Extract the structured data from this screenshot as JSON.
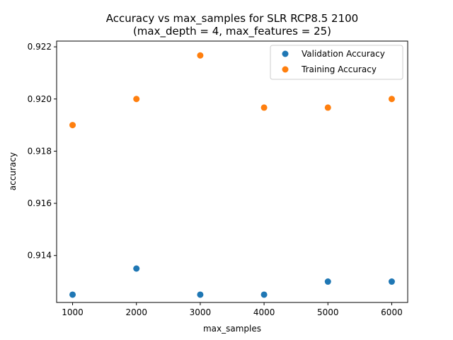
{
  "chart_data": {
    "type": "scatter",
    "title_line1": "Accuracy vs max_samples for SLR RCP8.5 2100",
    "title_line2": "(max_depth = 4, max_features = 25)",
    "xlabel": "max_samples",
    "ylabel": "accuracy",
    "xlim": [
      750,
      6250
    ],
    "ylim": [
      0.9122,
      0.92222
    ],
    "xticks": [
      1000,
      2000,
      3000,
      4000,
      5000,
      6000
    ],
    "xtick_labels": [
      "1000",
      "2000",
      "3000",
      "4000",
      "5000",
      "6000"
    ],
    "yticks": [
      0.914,
      0.916,
      0.918,
      0.92,
      0.922
    ],
    "ytick_labels": [
      "0.914",
      "0.916",
      "0.918",
      "0.920",
      "0.922"
    ],
    "grid": false,
    "legend_position": "top-right",
    "series": [
      {
        "name": "Validation Accuracy",
        "color": "#1f77b4",
        "x": [
          1000,
          2000,
          3000,
          4000,
          5000,
          6000
        ],
        "y": [
          0.9125,
          0.9135,
          0.9125,
          0.9125,
          0.913,
          0.913
        ]
      },
      {
        "name": "Training Accuracy",
        "color": "#ff7f0e",
        "x": [
          1000,
          2000,
          3000,
          4000,
          5000,
          6000
        ],
        "y": [
          0.919,
          0.92,
          0.92167,
          0.91967,
          0.91967,
          0.92
        ]
      }
    ]
  }
}
